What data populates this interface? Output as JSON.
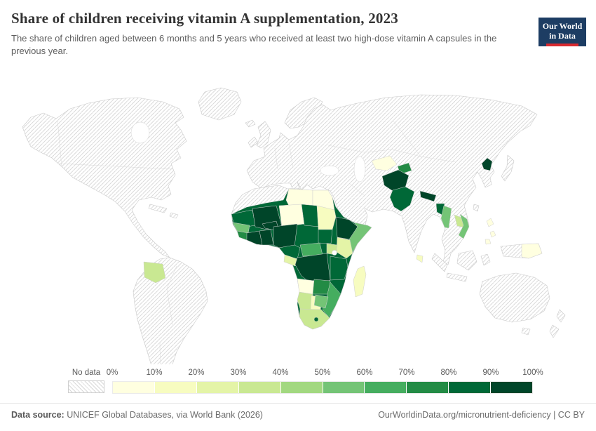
{
  "header": {
    "title": "Share of children receiving vitamin A supplementation, 2023",
    "subtitle": "The share of children aged between 6 months and 5 years who received at least two high-dose vitamin A capsules in the previous year.",
    "logo": {
      "line1": "Our World",
      "line2": "in Data",
      "bg_color": "#1d3d63",
      "accent_color": "#d8292f"
    }
  },
  "legend": {
    "no_data_label": "No data",
    "tick_labels": [
      "0%",
      "10%",
      "20%",
      "30%",
      "40%",
      "50%",
      "60%",
      "70%",
      "80%",
      "90%",
      "100%"
    ],
    "colors": [
      "#ffffe0",
      "#f7fcc0",
      "#e4f4a7",
      "#c9e892",
      "#a2d880",
      "#74c476",
      "#45ad5f",
      "#238b45",
      "#006837",
      "#004529"
    ]
  },
  "footer": {
    "source_label": "Data source:",
    "source_text": " UNICEF Global Databases, via World Bank (2026)",
    "right_text": "OurWorldinData.org/micronutrient-deficiency | CC BY"
  },
  "chart_data": {
    "type": "choropleth",
    "title": "Share of children receiving vitamin A supplementation",
    "year": 2023,
    "unit": "%",
    "bin_start_labels": [
      "0%",
      "10%",
      "20%",
      "30%",
      "40%",
      "50%",
      "60%",
      "70%",
      "80%",
      "90%",
      "100%"
    ],
    "no_data_label": "No data",
    "countries": [
      {
        "id": "libya",
        "name": "Libya",
        "value": 3
      },
      {
        "id": "egypt",
        "name": "Egypt",
        "value": 3
      },
      {
        "id": "mauritania",
        "name": "Mauritania",
        "value": 88
      },
      {
        "id": "mali",
        "name": "Mali",
        "value": 95
      },
      {
        "id": "burkina-faso",
        "name": "Burkina Faso",
        "value": 95
      },
      {
        "id": "niger",
        "name": "Niger",
        "value": 4
      },
      {
        "id": "chad",
        "name": "Chad",
        "value": 86
      },
      {
        "id": "sudan",
        "name": "Sudan",
        "value": 13
      },
      {
        "id": "senegal",
        "name": "Senegal",
        "value": 55
      },
      {
        "id": "guinea",
        "name": "Guinea",
        "value": 75
      },
      {
        "id": "cote-divoire",
        "name": "Cote d'Ivoire",
        "value": 92
      },
      {
        "id": "ghana",
        "name": "Ghana",
        "value": 92
      },
      {
        "id": "nigeria",
        "name": "Nigeria",
        "value": 95
      },
      {
        "id": "cameroon",
        "name": "Cameroon",
        "value": 88
      },
      {
        "id": "gabon",
        "name": "Gabon",
        "value": 25
      },
      {
        "id": "central-african-republic",
        "name": "Central African Republic",
        "value": 62
      },
      {
        "id": "south-sudan",
        "name": "South Sudan",
        "value": 85
      },
      {
        "id": "ethiopia",
        "name": "Ethiopia",
        "value": 94
      },
      {
        "id": "somalia",
        "name": "Somalia",
        "value": 55
      },
      {
        "id": "kenya",
        "name": "Kenya",
        "value": 28
      },
      {
        "id": "uganda",
        "name": "Uganda",
        "value": 35
      },
      {
        "id": "democratic-republic-of-congo",
        "name": "Democratic Republic of Congo",
        "value": 95
      },
      {
        "id": "tanzania",
        "name": "Tanzania",
        "value": 86
      },
      {
        "id": "angola",
        "name": "Angola",
        "value": 6
      },
      {
        "id": "zambia",
        "name": "Zambia",
        "value": 76
      },
      {
        "id": "mozambique",
        "name": "Mozambique",
        "value": 65
      },
      {
        "id": "zimbabwe",
        "name": "Zimbabwe",
        "value": 55
      },
      {
        "id": "namibia",
        "name": "Namibia",
        "value": 38
      },
      {
        "id": "botswana",
        "name": "Botswana",
        "value": 15
      },
      {
        "id": "south-africa",
        "name": "South Africa",
        "value": 38
      },
      {
        "id": "lesotho",
        "name": "Lesotho",
        "value": 85
      },
      {
        "id": "madagascar",
        "name": "Madagascar",
        "value": 15
      },
      {
        "id": "bolivia",
        "name": "Bolivia",
        "value": 36
      },
      {
        "id": "afghanistan",
        "name": "Afghanistan",
        "value": 95
      },
      {
        "id": "pakistan",
        "name": "Pakistan",
        "value": 87
      },
      {
        "id": "tajikistan",
        "name": "Tajikistan",
        "value": 76
      },
      {
        "id": "uzbekistan",
        "name": "Uzbekistan",
        "value": 6
      },
      {
        "id": "nepal",
        "name": "Nepal",
        "value": 93
      },
      {
        "id": "bangladesh",
        "name": "Bangladesh",
        "value": 87
      },
      {
        "id": "myanmar",
        "name": "Myanmar",
        "value": 56
      },
      {
        "id": "laos",
        "name": "Laos",
        "value": 38
      },
      {
        "id": "vietnam",
        "name": "Vietnam",
        "value": 55
      },
      {
        "id": "north-korea",
        "name": "North Korea",
        "value": 97
      },
      {
        "id": "philippines",
        "name": "Philippines",
        "value": 6
      },
      {
        "id": "sri-lanka",
        "name": "Sri Lanka",
        "value": 14
      },
      {
        "id": "papua-new-guinea",
        "name": "Papua New Guinea",
        "value": 8
      }
    ]
  }
}
